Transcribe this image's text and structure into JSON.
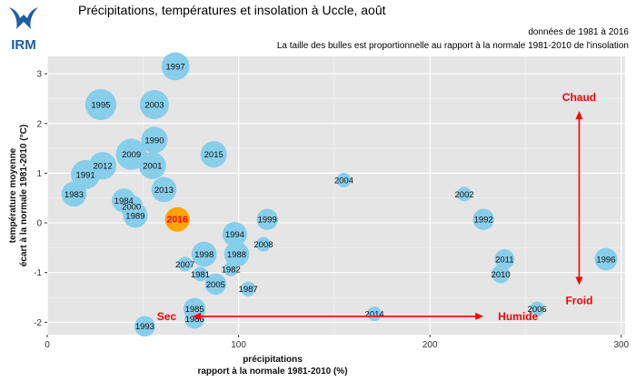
{
  "header": {
    "logo_text": "IRM",
    "title": "Précipitations, températures et insolation à Uccle, août",
    "note_period": "données de 1981 à 2016",
    "note_size": "La taille des bulles est proportionnelle au rapport à la normale 1981-2010 de l'insolation"
  },
  "colors": {
    "panel": "#e5e5e5",
    "grid": "#ffffff",
    "bubble": "#87ceeb",
    "highlight": "#ffa500",
    "arrow": "#ff0000"
  },
  "chart_data": {
    "type": "scatter",
    "xlabel": [
      "précipitations",
      "rapport à la normale 1981-2010 (%)"
    ],
    "ylabel": [
      "température moyenne",
      "écart à la normale 1981-2010 (°C)"
    ],
    "xlim": [
      0,
      302
    ],
    "ylim": [
      -2.25,
      3.35
    ],
    "x_ticks": [
      0,
      100,
      200,
      300
    ],
    "y_ticks": [
      -2,
      -1,
      0,
      1,
      2,
      3
    ],
    "grid": true,
    "highlight_year": "2016",
    "size_note": "bubble size ∝ sunshine ratio to normal",
    "points": [
      {
        "year": "1997",
        "x": 67,
        "y": 3.15,
        "s": 1.3
      },
      {
        "year": "1995",
        "x": 28,
        "y": 2.38,
        "s": 1.6
      },
      {
        "year": "2003",
        "x": 56,
        "y": 2.38,
        "s": 1.4
      },
      {
        "year": "1990",
        "x": 56,
        "y": 1.67,
        "s": 1.15
      },
      {
        "year": "2009",
        "x": 44,
        "y": 1.38,
        "s": 1.6
      },
      {
        "year": "2015",
        "x": 87,
        "y": 1.38,
        "s": 1.15
      },
      {
        "year": "2012",
        "x": 29,
        "y": 1.15,
        "s": 1.25
      },
      {
        "year": "2001",
        "x": 55,
        "y": 1.15,
        "s": 1.2
      },
      {
        "year": "1991",
        "x": 20,
        "y": 0.97,
        "s": 1.4
      },
      {
        "year": "2004",
        "x": 155,
        "y": 0.86,
        "s": 0.35
      },
      {
        "year": "2013",
        "x": 61,
        "y": 0.67,
        "s": 1.05
      },
      {
        "year": "1983",
        "x": 14,
        "y": 0.58,
        "s": 1.05
      },
      {
        "year": "2002",
        "x": 218,
        "y": 0.58,
        "s": 0.35
      },
      {
        "year": "1984",
        "x": 40,
        "y": 0.45,
        "s": 0.95
      },
      {
        "year": "2000",
        "x": 44,
        "y": 0.33,
        "s": 0.9
      },
      {
        "year": "1989",
        "x": 46,
        "y": 0.15,
        "s": 1.0
      },
      {
        "year": "2016",
        "x": 68,
        "y": 0.07,
        "s": 1.0
      },
      {
        "year": "1999",
        "x": 115,
        "y": 0.07,
        "s": 0.75
      },
      {
        "year": "1992",
        "x": 228,
        "y": 0.07,
        "s": 0.75
      },
      {
        "year": "1994",
        "x": 98,
        "y": -0.23,
        "s": 1.0
      },
      {
        "year": "2008",
        "x": 113,
        "y": -0.43,
        "s": 0.35
      },
      {
        "year": "1988",
        "x": 99,
        "y": -0.63,
        "s": 1.05
      },
      {
        "year": "1998",
        "x": 82,
        "y": -0.63,
        "s": 1.05
      },
      {
        "year": "2011",
        "x": 239,
        "y": -0.73,
        "s": 0.65
      },
      {
        "year": "1996",
        "x": 292,
        "y": -0.73,
        "s": 0.85
      },
      {
        "year": "2007",
        "x": 72,
        "y": -0.83,
        "s": 0.35
      },
      {
        "year": "1982",
        "x": 96,
        "y": -0.93,
        "s": 0.35
      },
      {
        "year": "1981",
        "x": 80,
        "y": -1.03,
        "s": 0.35
      },
      {
        "year": "2010",
        "x": 237,
        "y": -1.03,
        "s": 0.55
      },
      {
        "year": "2005",
        "x": 88,
        "y": -1.23,
        "s": 0.75
      },
      {
        "year": "1987",
        "x": 105,
        "y": -1.33,
        "s": 0.35
      },
      {
        "year": "2006",
        "x": 256,
        "y": -1.73,
        "s": 0.35
      },
      {
        "year": "1985",
        "x": 77,
        "y": -1.73,
        "s": 0.8
      },
      {
        "year": "2014",
        "x": 171,
        "y": -1.83,
        "s": 0.35
      },
      {
        "year": "1986",
        "x": 77,
        "y": -1.93,
        "s": 0.65
      },
      {
        "year": "1993",
        "x": 51,
        "y": -2.08,
        "s": 0.7
      }
    ],
    "annotations": {
      "warm": "Chaud",
      "cold": "Froid",
      "dry": "Sec",
      "wet": "Humide"
    },
    "arrows": {
      "vertical": {
        "x": 278,
        "y_from": 2.25,
        "y_to": -1.25
      },
      "horizontal": {
        "y": -1.88,
        "x_from": 76,
        "x_to": 228
      }
    }
  }
}
